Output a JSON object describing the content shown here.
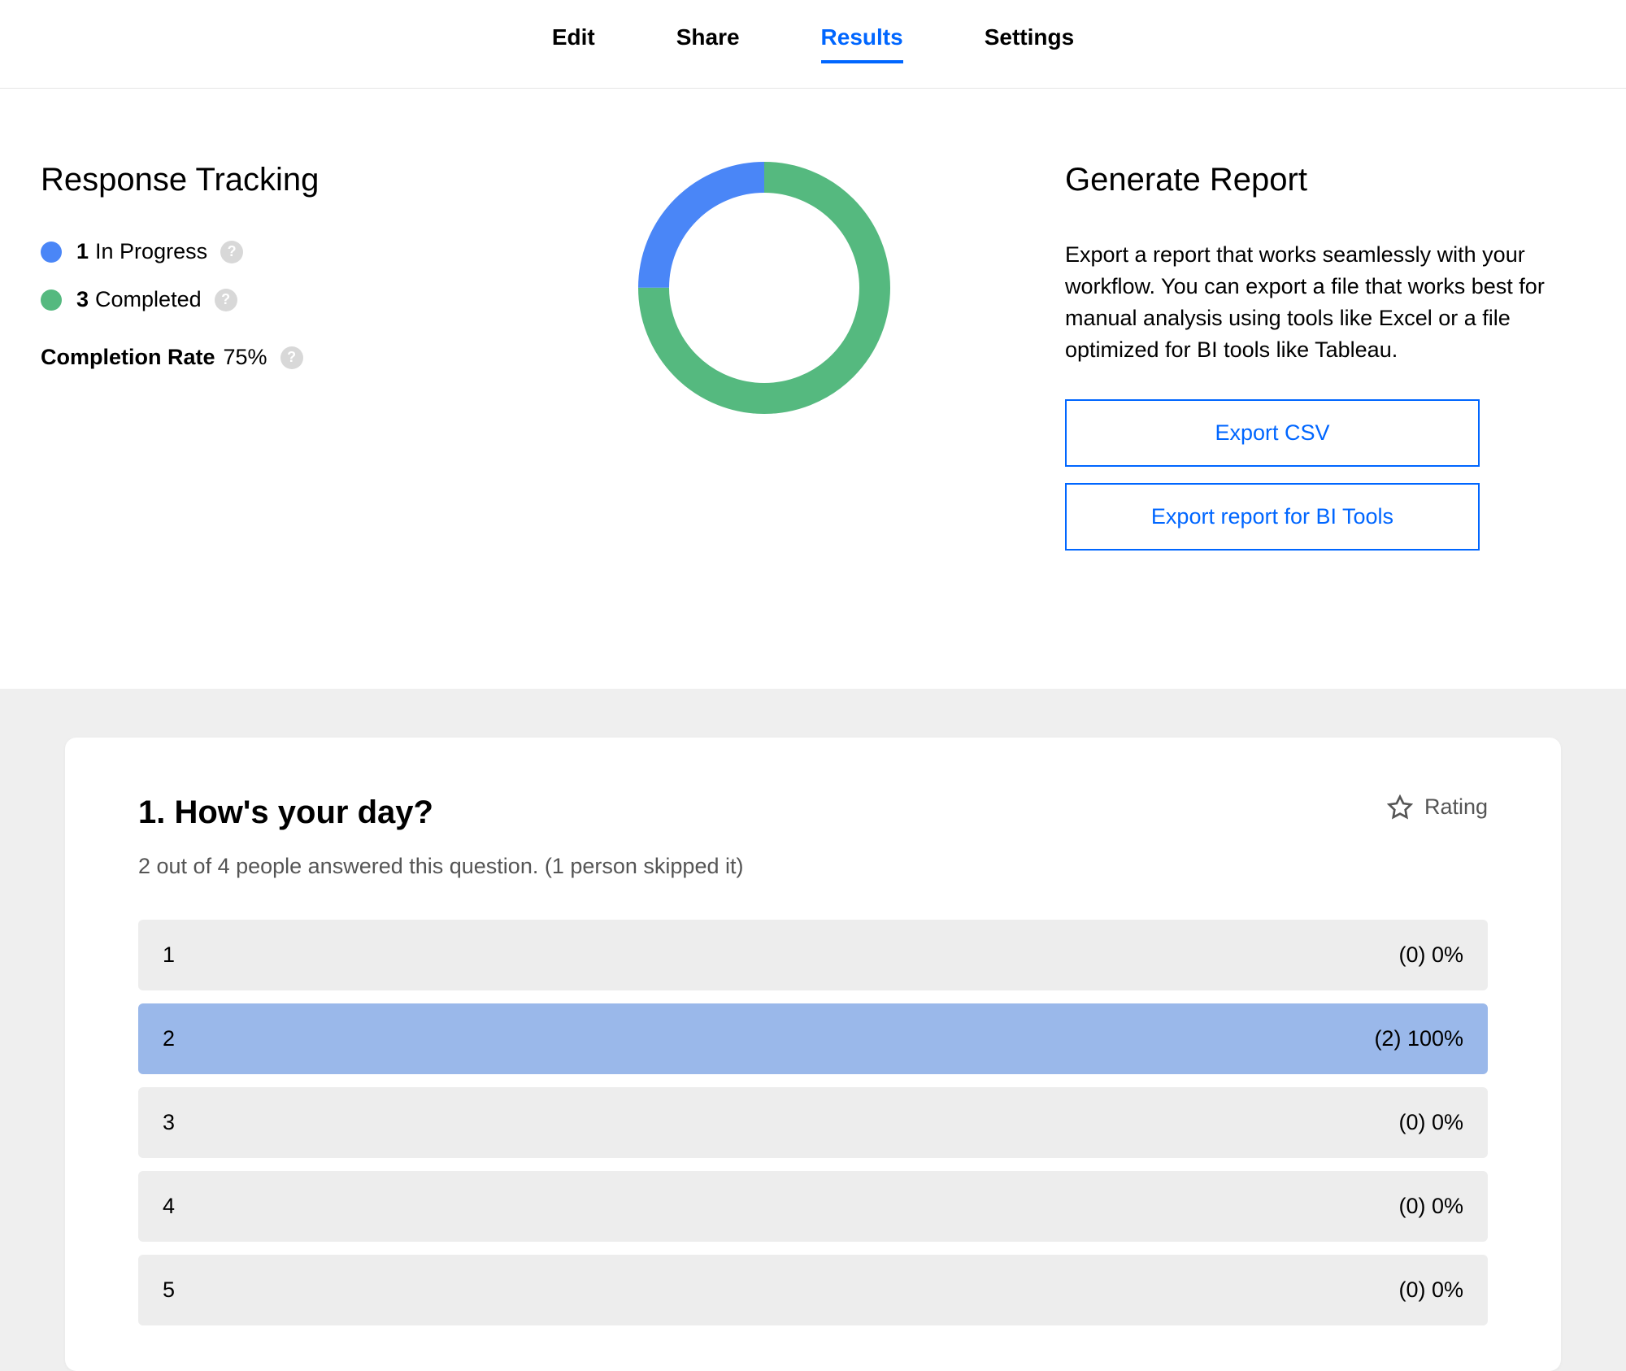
{
  "tabs": {
    "items": [
      {
        "label": "Edit",
        "active": false
      },
      {
        "label": "Share",
        "active": false
      },
      {
        "label": "Results",
        "active": true
      },
      {
        "label": "Settings",
        "active": false
      }
    ]
  },
  "tracking": {
    "title": "Response Tracking",
    "in_progress": {
      "count": "1",
      "label": "In Progress",
      "color": "#4a86f7"
    },
    "completed": {
      "count": "3",
      "label": "Completed",
      "color": "#55b97f"
    },
    "completion_label": "Completion Rate",
    "completion_value": "75%"
  },
  "donut": {
    "size": 310,
    "stroke_width": 38,
    "background_color": "#ffffff",
    "segments": [
      {
        "color": "#55b97f",
        "fraction": 0.75
      },
      {
        "color": "#4a86f7",
        "fraction": 0.25
      }
    ],
    "rotation_deg": -90
  },
  "report": {
    "title": "Generate Report",
    "description": "Export a report that works seamlessly with your workflow. You can export a file that works best for manual analysis using tools like Excel or a file optimized for BI tools like Tableau.",
    "export_csv_label": "Export CSV",
    "export_bi_label": "Export report for BI Tools"
  },
  "question": {
    "title": "1. How's your day?",
    "type_label": "Rating",
    "subtext": "2 out of 4 people answered this question. (1 person skipped it)",
    "bar_default_bg": "#ededed",
    "bar_highlight_bg": "#9ab8ea",
    "rows": [
      {
        "label": "1",
        "stat": "(0) 0%",
        "highlight": false
      },
      {
        "label": "2",
        "stat": "(2) 100%",
        "highlight": true
      },
      {
        "label": "3",
        "stat": "(0) 0%",
        "highlight": false
      },
      {
        "label": "4",
        "stat": "(0) 0%",
        "highlight": false
      },
      {
        "label": "5",
        "stat": "(0) 0%",
        "highlight": false
      }
    ]
  }
}
